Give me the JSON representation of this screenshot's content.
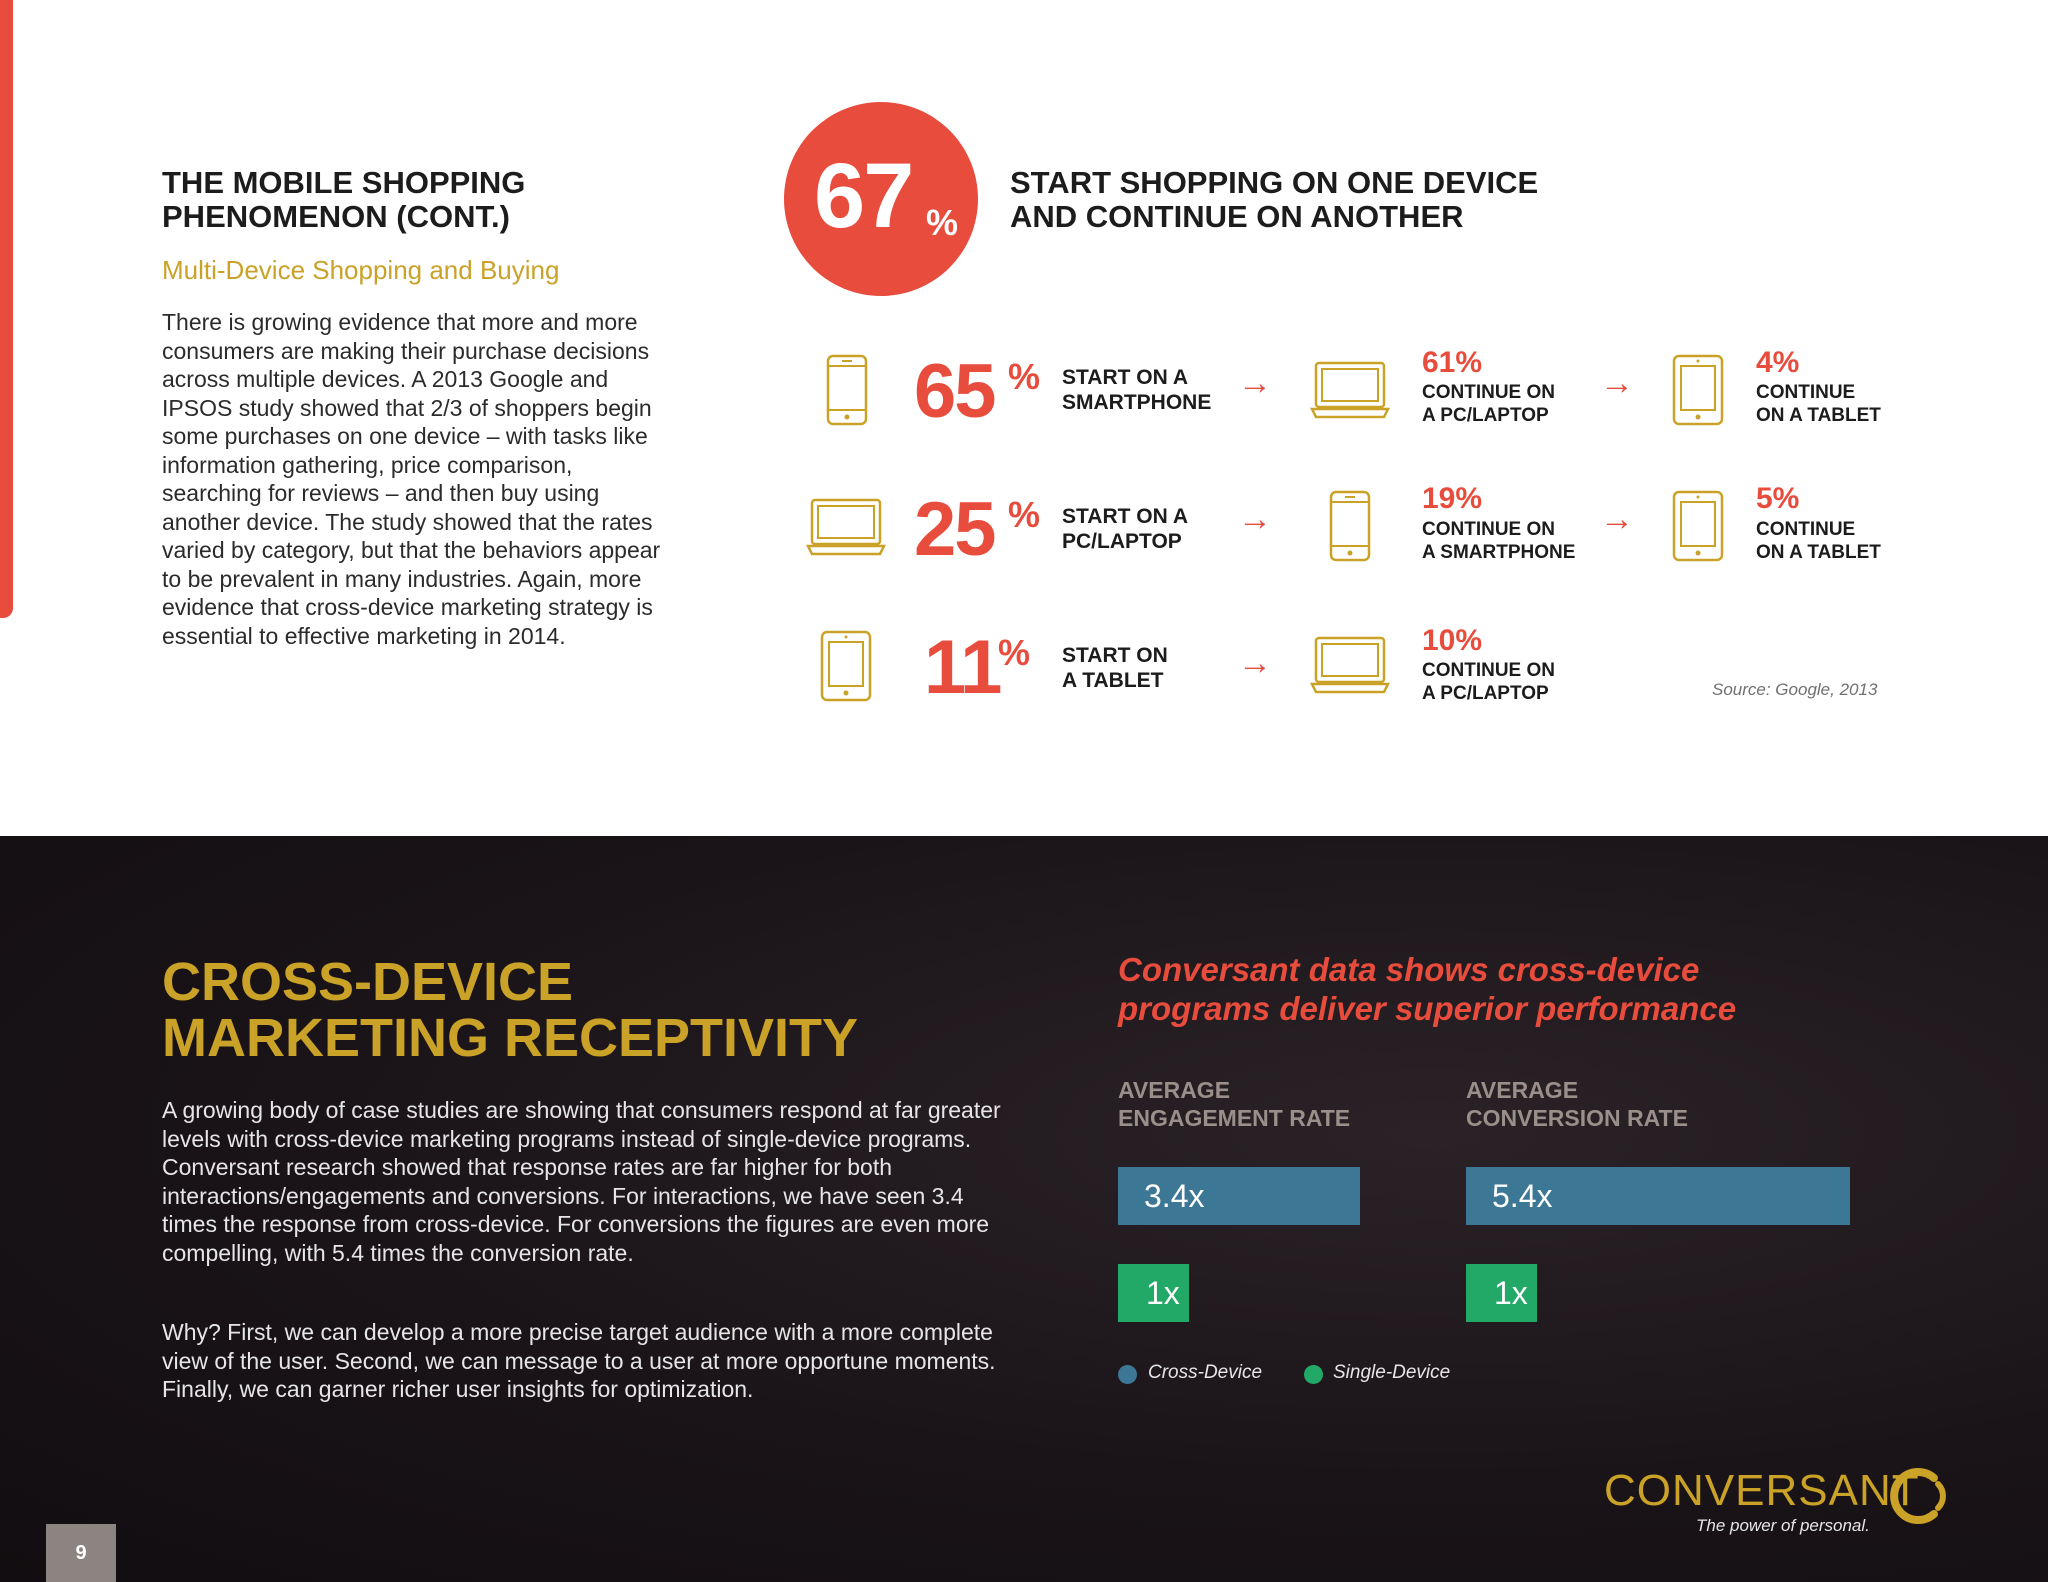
{
  "top": {
    "title_line1": "THE MOBILE SHOPPING",
    "title_line2": "PHENOMENON (CONT.)",
    "subtitle": "Multi-Device Shopping and Buying",
    "body": "There is growing evidence that more and more consumers are making their purchase decisions across multiple devices. A 2013 Google and IPSOS study showed that 2/3 of shoppers begin some purchases on one device – with tasks like information gathering, price comparison, searching for reviews – and then buy using another device. The study showed that the rates varied by category, but that the behaviors appear to be prevalent in many industries. Again, more evidence that cross-device marketing strategy is essential to effective marketing in 2014.",
    "big_stat": "67",
    "big_stat_unit": "%",
    "big_headline_line1": "START SHOPPING ON ONE DEVICE",
    "big_headline_line2": "AND CONTINUE ON ANOTHER",
    "rows": [
      {
        "start_icon": "smartphone-icon",
        "start_value": "65",
        "start_unit": "%",
        "start_label_line1": "START ON A",
        "start_label_line2": "SMARTPHONE",
        "cont1_icon": "laptop-icon",
        "cont1_value": "61%",
        "cont1_label_line1": "CONTINUE ON",
        "cont1_label_line2": "A PC/LAPTOP",
        "cont2_icon": "tablet-icon",
        "cont2_value": "4%",
        "cont2_label_line1": "CONTINUE",
        "cont2_label_line2": "ON A TABLET"
      },
      {
        "start_icon": "laptop-icon",
        "start_value": "25",
        "start_unit": "%",
        "start_label_line1": "START ON A",
        "start_label_line2": "PC/LAPTOP",
        "cont1_icon": "smartphone-icon",
        "cont1_value": "19%",
        "cont1_label_line1": "CONTINUE ON",
        "cont1_label_line2": "A SMARTPHONE",
        "cont2_icon": "tablet-icon",
        "cont2_value": "5%",
        "cont2_label_line1": "CONTINUE",
        "cont2_label_line2": "ON A TABLET"
      },
      {
        "start_icon": "tablet-icon",
        "start_value": "11",
        "start_unit": "%",
        "start_label_line1": "START ON",
        "start_label_line2": "A TABLET",
        "cont1_icon": "laptop-icon",
        "cont1_value": "10%",
        "cont1_label_line1": "CONTINUE ON",
        "cont1_label_line2": "A PC/LAPTOP"
      }
    ],
    "arrow_glyph": "→",
    "source": "Source: Google, 2013"
  },
  "bottom": {
    "title_line1": "CROSS-DEVICE",
    "title_line2": "MARKETING RECEPTIVITY",
    "body1": "A growing body of case studies are showing that consumers respond at far greater levels with cross-device marketing programs instead of single-device programs. Conversant research showed that response rates are far higher for both interactions/engagements and conversions. For interactions, we have seen 3.4 times the response from cross-device. For conversions the figures are even more compelling, with 5.4 times the conversion rate.",
    "body2": "Why? First, we can develop a more precise target audience with a more complete view of the user. Second, we can message to a user at more opportune moments. Finally, we can garner richer user insights for optimization.",
    "headline_line1": "Conversant data shows cross-device",
    "headline_line2": "programs deliver superior performance",
    "legend": {
      "cross_label": "Cross-Device",
      "single_label": "Single-Device"
    }
  },
  "chart_data": [
    {
      "type": "bar",
      "title": "AVERAGE ENGAGEMENT RATE",
      "title_line1": "AVERAGE",
      "title_line2": "ENGAGEMENT RATE",
      "categories": [
        "Cross-Device",
        "Single-Device"
      ],
      "values": [
        3.4,
        1
      ],
      "labels": [
        "3.4x",
        "1x"
      ]
    },
    {
      "type": "bar",
      "title": "AVERAGE CONVERSION RATE",
      "title_line1": "AVERAGE",
      "title_line2": "CONVERSION RATE",
      "categories": [
        "Cross-Device",
        "Single-Device"
      ],
      "values": [
        5.4,
        1
      ],
      "labels": [
        "5.4x",
        "1x"
      ]
    }
  ],
  "colors": {
    "accent_red": "#e84c3d",
    "gold": "#c9a227",
    "cross_device_blue": "#3d7796",
    "single_device_green": "#22a867"
  },
  "footer": {
    "logo_text": "CONVERSANT",
    "tagline": "The power of personal.",
    "page_number": "9"
  }
}
